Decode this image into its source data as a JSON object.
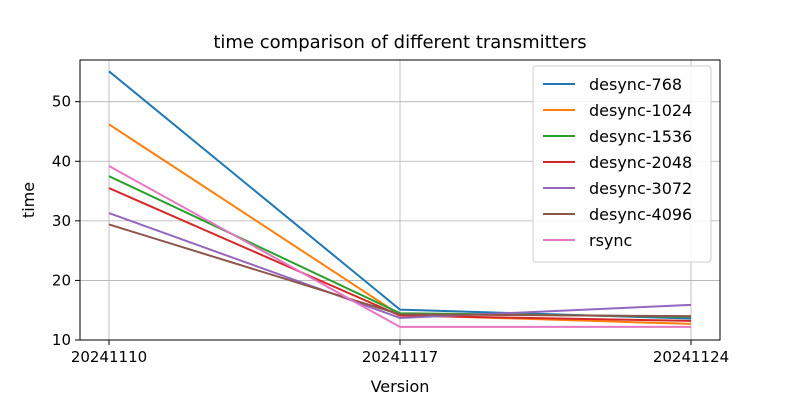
{
  "chart_data": {
    "type": "line",
    "title": "time comparison of different transmitters",
    "xlabel": "Version",
    "ylabel": "time",
    "x": [
      "20241110",
      "20241117",
      "20241124"
    ],
    "ylim": [
      10,
      57
    ],
    "yticks": [
      10,
      20,
      30,
      40,
      50
    ],
    "grid": true,
    "legend_position": "top-right",
    "series": [
      {
        "name": "desync-768",
        "color": "#1f77b4",
        "values": [
          55.1,
          15.1,
          13.6
        ]
      },
      {
        "name": "desync-1024",
        "color": "#ff7f0e",
        "values": [
          46.2,
          14.2,
          12.7
        ]
      },
      {
        "name": "desync-1536",
        "color": "#2ca02c",
        "values": [
          37.5,
          14.5,
          13.9
        ]
      },
      {
        "name": "desync-2048",
        "color": "#d62728",
        "values": [
          35.5,
          14.1,
          13.2
        ]
      },
      {
        "name": "desync-3072",
        "color": "#9467bd",
        "values": [
          31.3,
          13.7,
          15.9
        ]
      },
      {
        "name": "desync-4096",
        "color": "#8c564b",
        "values": [
          29.4,
          14.3,
          14.0
        ]
      },
      {
        "name": "rsync",
        "color": "#e377c2",
        "values": [
          39.2,
          12.2,
          12.2
        ]
      }
    ]
  }
}
